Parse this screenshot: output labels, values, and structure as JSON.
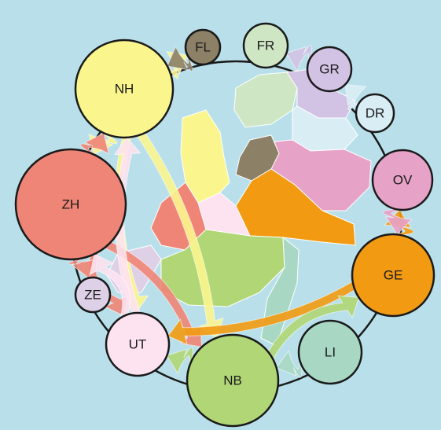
{
  "regions": [
    {
      "id": "FL",
      "label": "FL",
      "color": "#8c8066"
    },
    {
      "id": "FR",
      "label": "FR",
      "color": "#cfe6c4"
    },
    {
      "id": "GR",
      "label": "GR",
      "color": "#d2c2e4"
    },
    {
      "id": "DR",
      "label": "DR",
      "color": "#d8eef4"
    },
    {
      "id": "OV",
      "label": "OV",
      "color": "#e7a2c8"
    },
    {
      "id": "GE",
      "label": "GE",
      "color": "#f29a12"
    },
    {
      "id": "LI",
      "label": "LI",
      "color": "#a8d8c4"
    },
    {
      "id": "NB",
      "label": "NB",
      "color": "#b0d676"
    },
    {
      "id": "UT",
      "label": "UT",
      "color": "#fde2ef"
    },
    {
      "id": "ZE",
      "label": "ZE",
      "color": "#ded0e6"
    },
    {
      "id": "ZH",
      "label": "ZH",
      "color": "#ef8577"
    },
    {
      "id": "NH",
      "label": "NH",
      "color": "#fbf58e"
    }
  ],
  "flows": [
    {
      "from": "NH",
      "to": "ZH",
      "color": "#fbf58e"
    },
    {
      "from": "NH",
      "to": "UT",
      "color": "#fbf58e"
    },
    {
      "from": "NH",
      "to": "NB",
      "color": "#fbf58e"
    },
    {
      "from": "NH",
      "to": "FL",
      "color": "#fbf58e"
    },
    {
      "from": "ZH",
      "to": "NH",
      "color": "#ef8577"
    },
    {
      "from": "ZH",
      "to": "UT",
      "color": "#ef8577"
    },
    {
      "from": "ZH",
      "to": "NB",
      "color": "#ef8577"
    },
    {
      "from": "ZH",
      "to": "ZE",
      "color": "#ef8577"
    },
    {
      "from": "UT",
      "to": "NH",
      "color": "#fde2ef"
    },
    {
      "from": "UT",
      "to": "ZH",
      "color": "#fde2ef"
    },
    {
      "from": "GE",
      "to": "UT",
      "color": "#f29a12"
    },
    {
      "from": "GE",
      "to": "OV",
      "color": "#f29a12"
    },
    {
      "from": "NB",
      "to": "GE",
      "color": "#b0d676"
    },
    {
      "from": "NB",
      "to": "UT",
      "color": "#b0d676"
    },
    {
      "from": "LI",
      "to": "NB",
      "color": "#a8d8c4"
    },
    {
      "from": "OV",
      "to": "GE",
      "color": "#e7a2c8"
    },
    {
      "from": "DR",
      "to": "GR",
      "color": "#d8eef4"
    },
    {
      "from": "GR",
      "to": "FR",
      "color": "#d2c2e4"
    },
    {
      "from": "FL",
      "to": "NH",
      "color": "#8c8066"
    }
  ]
}
